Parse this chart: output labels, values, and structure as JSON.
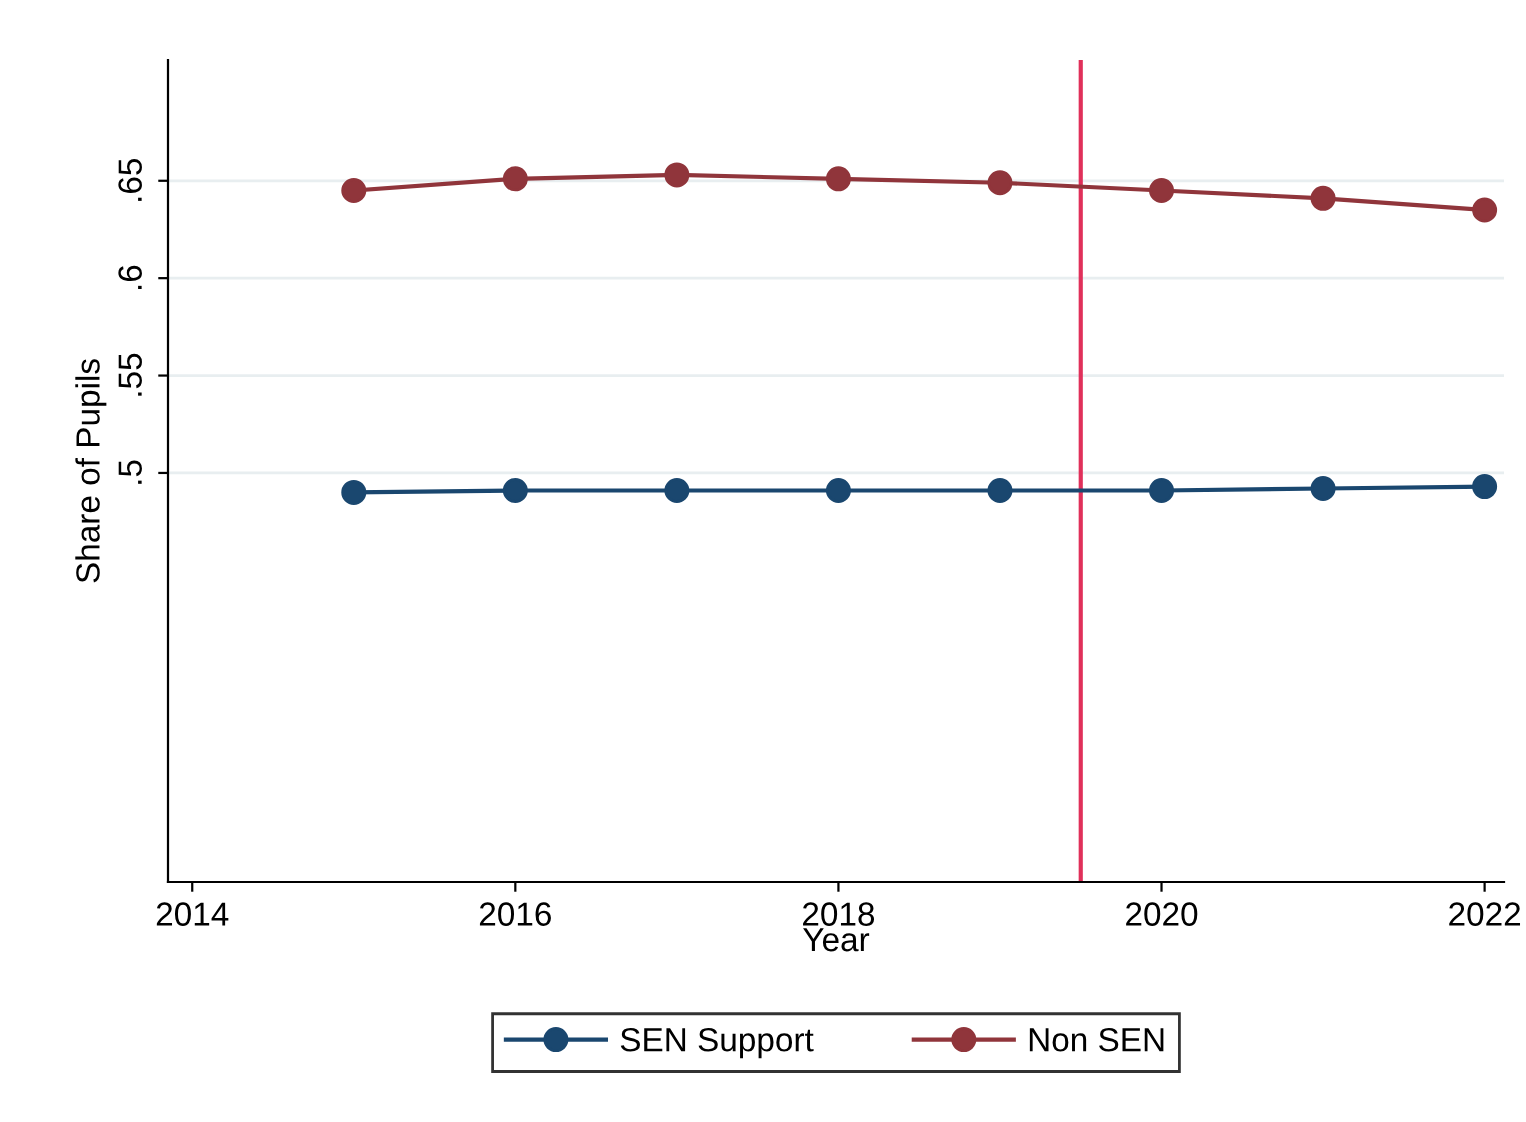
{
  "chart_data": {
    "type": "line",
    "xlabel": "Year",
    "ylabel": "Share of Pupils",
    "x": [
      2015,
      2016,
      2017,
      2018,
      2019,
      2020,
      2021,
      2022
    ],
    "series": [
      {
        "name": "SEN Support",
        "color": "#1a476f",
        "values": [
          0.49,
          0.491,
          0.491,
          0.491,
          0.491,
          0.491,
          0.492,
          0.493
        ]
      },
      {
        "name": "Non SEN",
        "color": "#90353b",
        "values": [
          0.645,
          0.651,
          0.653,
          0.651,
          0.649,
          0.645,
          0.641,
          0.635
        ]
      }
    ],
    "xlim": [
      2013.85,
      2022.12
    ],
    "xticks": [
      2014,
      2016,
      2018,
      2020,
      2022
    ],
    "ylim": [
      0.29,
      0.712
    ],
    "yticks": [
      {
        "value": 0.5,
        "label": ".5"
      },
      {
        "value": 0.55,
        "label": ".55"
      },
      {
        "value": 0.6,
        "label": ".6"
      },
      {
        "value": 0.65,
        "label": ".65"
      }
    ],
    "ref_lines": [
      {
        "axis": "x",
        "value": 2019.5,
        "color": "#e0305a"
      }
    ],
    "grid": "y",
    "legend": "bottom",
    "marker": "circle",
    "line_style": "solid"
  }
}
